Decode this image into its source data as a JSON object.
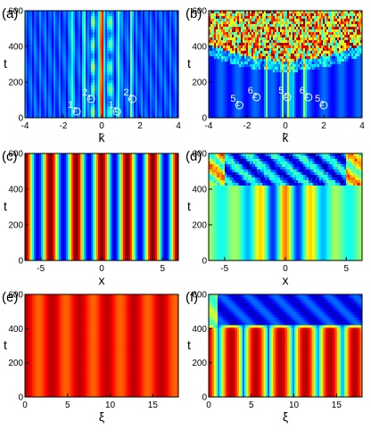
{
  "chart_data": [
    {
      "panel": "(a)",
      "type": "heatmap",
      "pattern": "spectrum",
      "xlabel": "k̄",
      "ylabel": "t",
      "xlim": [
        -4,
        4
      ],
      "ylim": [
        0,
        600
      ],
      "xticks": [
        "-4",
        "-2",
        "0",
        "2",
        "4"
      ],
      "xtick_values": [
        -4,
        -2,
        0,
        2,
        4
      ],
      "yticks": [
        "0",
        "200",
        "400",
        "600"
      ],
      "ytick_values": [
        0,
        200,
        400,
        600
      ],
      "markers": [
        {
          "label": "1",
          "sub": "2",
          "x": -1.3,
          "y": 35
        },
        {
          "label": "2",
          "sub": "1",
          "x": -0.55,
          "y": 105
        },
        {
          "label": "1",
          "sub": "1",
          "x": 0.8,
          "y": 35
        },
        {
          "label": "2",
          "sub": "2",
          "x": 1.6,
          "y": 105
        }
      ]
    },
    {
      "panel": "(b)",
      "type": "heatmap",
      "pattern": "spectrum-noisy",
      "xlabel": "k̃",
      "ylabel": "t",
      "xlim": [
        -4,
        4
      ],
      "ylim": [
        0,
        600
      ],
      "xticks": [
        "-4",
        "-2",
        "0",
        "2",
        "4"
      ],
      "xtick_values": [
        -4,
        -2,
        0,
        2,
        4
      ],
      "yticks": [
        "0",
        "200",
        "400",
        "600"
      ],
      "ytick_values": [
        0,
        200,
        400,
        600
      ],
      "markers": [
        {
          "label": "5",
          "sub": "1",
          "x": -2.4,
          "y": 70
        },
        {
          "label": "6",
          "sub": "2",
          "x": -1.5,
          "y": 115
        },
        {
          "label": "5",
          "sub": "1",
          "x": 0.1,
          "y": 115
        },
        {
          "label": "6",
          "sub": "1",
          "x": 1.2,
          "y": 115
        },
        {
          "label": "5",
          "sub": "2",
          "x": 2.0,
          "y": 70
        }
      ]
    },
    {
      "panel": "(c)",
      "type": "heatmap",
      "pattern": "stripes",
      "xlabel": "x",
      "ylabel": "t",
      "xlim": [
        -6.3,
        6.3
      ],
      "ylim": [
        0,
        600
      ],
      "xticks": [
        "-5",
        "0",
        "5"
      ],
      "xtick_values": [
        -5,
        0,
        5
      ],
      "yticks": [
        "0",
        "200",
        "400",
        "600"
      ],
      "ytick_values": [
        0,
        200,
        400,
        600
      ]
    },
    {
      "panel": "(d)",
      "type": "heatmap",
      "pattern": "stripes-decay",
      "xlabel": "x",
      "ylabel": "t",
      "xlim": [
        -6.3,
        6.3
      ],
      "ylim": [
        0,
        600
      ],
      "xticks": [
        "-5",
        "0",
        "5"
      ],
      "xtick_values": [
        -5,
        0,
        5
      ],
      "yticks": [
        "0",
        "200",
        "400",
        "600"
      ],
      "ytick_values": [
        0,
        200,
        400,
        600
      ]
    },
    {
      "panel": "(e)",
      "type": "heatmap",
      "pattern": "bands",
      "xlabel": "ξ",
      "ylabel": "t",
      "xlim": [
        0,
        18
      ],
      "ylim": [
        0,
        600
      ],
      "xticks": [
        "0",
        "5",
        "10",
        "15"
      ],
      "xtick_values": [
        0,
        5,
        10,
        15
      ],
      "yticks": [
        "0",
        "200",
        "400",
        "600"
      ],
      "ytick_values": [
        0,
        200,
        400,
        600
      ]
    },
    {
      "panel": "(f)",
      "type": "heatmap",
      "pattern": "arches",
      "xlabel": "ξ",
      "ylabel": "t",
      "xlim": [
        0,
        18
      ],
      "ylim": [
        0,
        600
      ],
      "xticks": [
        "0",
        "5",
        "10",
        "15"
      ],
      "xtick_values": [
        0,
        5,
        10,
        15
      ],
      "yticks": [
        "0",
        "200",
        "400",
        "600"
      ],
      "ytick_values": [
        0,
        200,
        400,
        600
      ]
    }
  ]
}
